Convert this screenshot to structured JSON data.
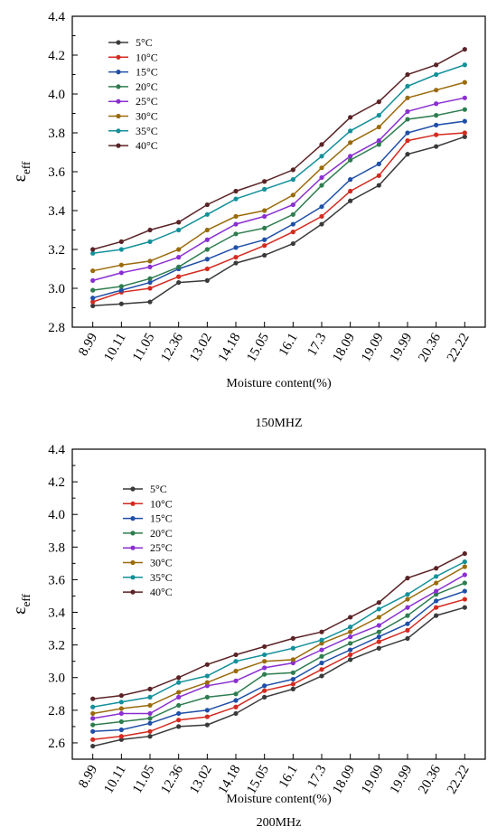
{
  "chart_data": [
    {
      "type": "line",
      "caption": "150MHZ",
      "xlabel": "Moisture content(%)",
      "ylabel": "ε",
      "ylabel_sub": "eff",
      "ylim": [
        2.8,
        4.4
      ],
      "yticks": [
        "2.8",
        "3.0",
        "3.2",
        "3.4",
        "3.6",
        "3.8",
        "4.0",
        "4.2",
        "4.4"
      ],
      "categories": [
        "8.99",
        "10.11",
        "11.05",
        "12.36",
        "13.02",
        "14.18",
        "15.05",
        "16.1",
        "17.3",
        "18.09",
        "19.09",
        "19.99",
        "20.36",
        "22.22"
      ],
      "legend_position": "top-left",
      "series": [
        {
          "name": "5°C",
          "color": "#3a3a3a",
          "values": [
            2.91,
            2.92,
            2.93,
            3.03,
            3.04,
            3.13,
            3.17,
            3.23,
            3.33,
            3.45,
            3.53,
            3.69,
            3.73,
            3.78
          ]
        },
        {
          "name": "10°C",
          "color": "#d42a1f",
          "values": [
            2.93,
            2.98,
            3.0,
            3.06,
            3.1,
            3.16,
            3.22,
            3.29,
            3.37,
            3.5,
            3.58,
            3.76,
            3.79,
            3.8
          ]
        },
        {
          "name": "15°C",
          "color": "#1f4fa8",
          "values": [
            2.95,
            2.99,
            3.03,
            3.1,
            3.15,
            3.21,
            3.25,
            3.33,
            3.42,
            3.56,
            3.64,
            3.8,
            3.84,
            3.86
          ]
        },
        {
          "name": "20°C",
          "color": "#2e7d4f",
          "values": [
            2.99,
            3.01,
            3.05,
            3.11,
            3.2,
            3.28,
            3.31,
            3.38,
            3.53,
            3.66,
            3.74,
            3.87,
            3.89,
            3.92
          ]
        },
        {
          "name": "25°C",
          "color": "#8a2fd0",
          "values": [
            3.04,
            3.08,
            3.11,
            3.16,
            3.25,
            3.33,
            3.37,
            3.43,
            3.57,
            3.68,
            3.76,
            3.91,
            3.95,
            3.98
          ]
        },
        {
          "name": "30°C",
          "color": "#9a6b0c",
          "values": [
            3.09,
            3.12,
            3.14,
            3.2,
            3.3,
            3.37,
            3.4,
            3.48,
            3.62,
            3.75,
            3.83,
            3.98,
            4.02,
            4.06
          ]
        },
        {
          "name": "35°C",
          "color": "#13909a",
          "values": [
            3.18,
            3.2,
            3.24,
            3.3,
            3.38,
            3.46,
            3.51,
            3.56,
            3.68,
            3.81,
            3.89,
            4.04,
            4.1,
            4.15
          ]
        },
        {
          "name": "40°C",
          "color": "#5a2326",
          "values": [
            3.2,
            3.24,
            3.3,
            3.34,
            3.43,
            3.5,
            3.55,
            3.61,
            3.74,
            3.88,
            3.96,
            4.1,
            4.15,
            4.23
          ]
        }
      ]
    },
    {
      "type": "line",
      "caption": "200MHz",
      "xlabel": "Moisture content(%)",
      "ylabel": "ε",
      "ylabel_sub": "eff",
      "ylim": [
        2.5,
        4.4
      ],
      "yticks": [
        "2.6",
        "2.8",
        "3.0",
        "3.2",
        "3.4",
        "3.6",
        "3.8",
        "4.0",
        "4.2",
        "4.4"
      ],
      "categories": [
        "8.99",
        "10.11",
        "11.05",
        "12.36",
        "13.02",
        "14.18",
        "15.05",
        "16.1",
        "17.3",
        "18.09",
        "19.09",
        "19.99",
        "20.36",
        "22.22"
      ],
      "legend_position": "top-left",
      "series": [
        {
          "name": "5°C",
          "color": "#3a3a3a",
          "values": [
            2.58,
            2.62,
            2.64,
            2.7,
            2.71,
            2.78,
            2.88,
            2.93,
            3.01,
            3.11,
            3.18,
            3.24,
            3.38,
            3.43
          ]
        },
        {
          "name": "10°C",
          "color": "#d42a1f",
          "values": [
            2.62,
            2.64,
            2.67,
            2.74,
            2.76,
            2.82,
            2.92,
            2.96,
            3.05,
            3.14,
            3.22,
            3.29,
            3.43,
            3.48
          ]
        },
        {
          "name": "15°C",
          "color": "#1f4fa8",
          "values": [
            2.67,
            2.68,
            2.72,
            2.78,
            2.8,
            2.86,
            2.95,
            2.99,
            3.09,
            3.17,
            3.25,
            3.33,
            3.47,
            3.53
          ]
        },
        {
          "name": "20°C",
          "color": "#2e7d4f",
          "values": [
            2.71,
            2.73,
            2.75,
            2.83,
            2.88,
            2.9,
            3.02,
            3.03,
            3.13,
            3.21,
            3.28,
            3.38,
            3.51,
            3.58
          ]
        },
        {
          "name": "25°C",
          "color": "#8a2fd0",
          "values": [
            2.75,
            2.78,
            2.78,
            2.88,
            2.95,
            2.98,
            3.06,
            3.09,
            3.17,
            3.25,
            3.32,
            3.43,
            3.53,
            3.63
          ]
        },
        {
          "name": "30°C",
          "color": "#9a6b0c",
          "values": [
            2.78,
            2.81,
            2.83,
            2.91,
            2.97,
            3.04,
            3.1,
            3.11,
            3.21,
            3.28,
            3.37,
            3.48,
            3.58,
            3.68
          ]
        },
        {
          "name": "35°C",
          "color": "#13909a",
          "values": [
            2.82,
            2.85,
            2.88,
            2.97,
            3.01,
            3.1,
            3.14,
            3.18,
            3.23,
            3.31,
            3.42,
            3.51,
            3.62,
            3.71
          ]
        },
        {
          "name": "40°C",
          "color": "#5a2326",
          "values": [
            2.87,
            2.89,
            2.93,
            3.0,
            3.08,
            3.14,
            3.19,
            3.24,
            3.28,
            3.37,
            3.46,
            3.61,
            3.67,
            3.76
          ]
        }
      ]
    }
  ]
}
